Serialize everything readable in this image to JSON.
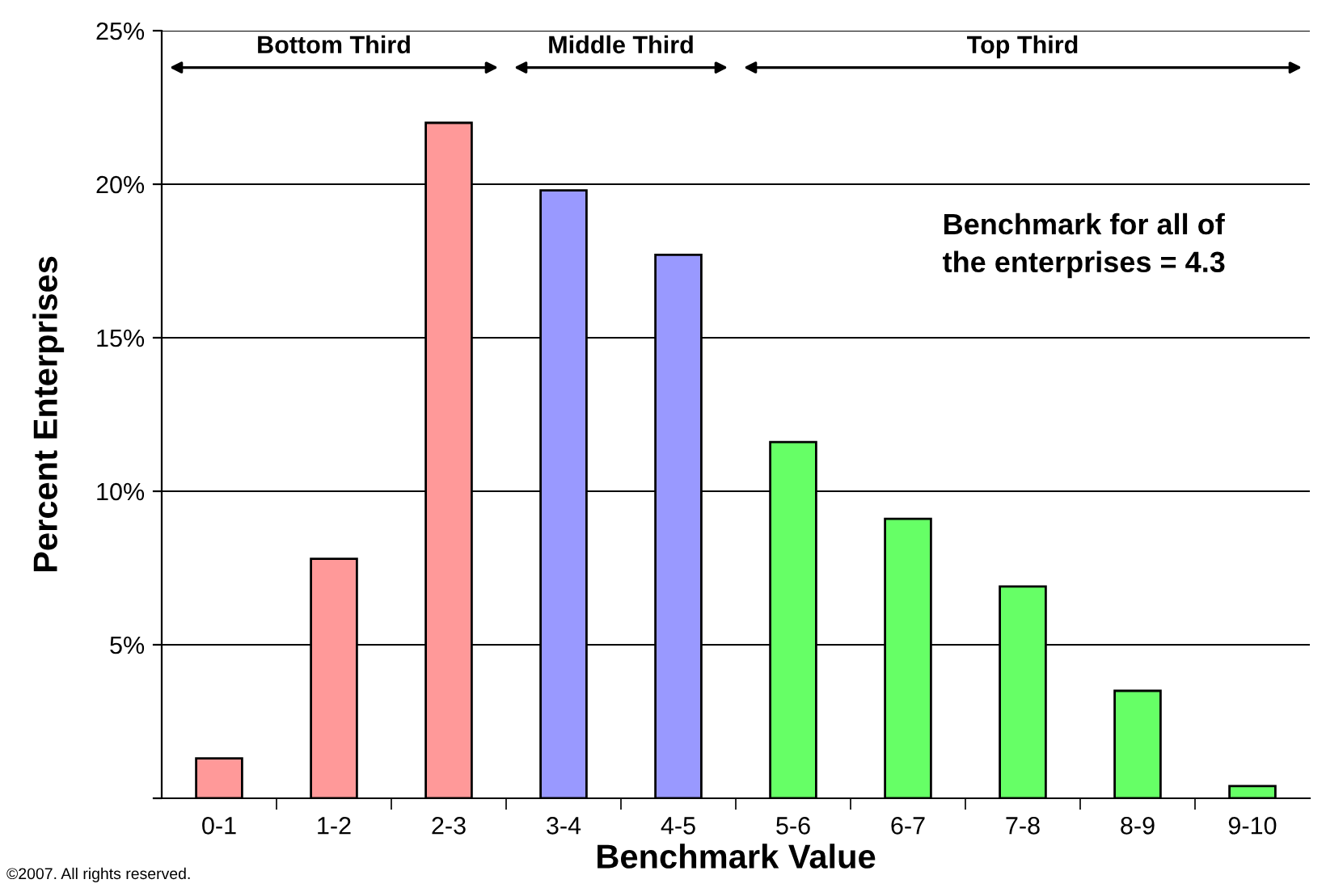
{
  "chart_data": {
    "type": "bar",
    "xlabel": "Benchmark Value",
    "ylabel": "Percent Enterprises",
    "categories": [
      "0-1",
      "1-2",
      "2-3",
      "3-4",
      "4-5",
      "5-6",
      "6-7",
      "7-8",
      "8-9",
      "9-10"
    ],
    "values": [
      1.3,
      7.8,
      22.0,
      19.8,
      17.7,
      11.6,
      9.1,
      6.9,
      3.5,
      0.4
    ],
    "colors": [
      "#ff9999",
      "#ff9999",
      "#ff9999",
      "#9999ff",
      "#9999ff",
      "#66ff66",
      "#66ff66",
      "#66ff66",
      "#66ff66",
      "#66ff66"
    ],
    "ylim": [
      0,
      25
    ],
    "yticks": [
      {
        "value": 0,
        "label": null
      },
      {
        "value": 5,
        "label": "5%"
      },
      {
        "value": 10,
        "label": "10%"
      },
      {
        "value": 15,
        "label": "15%"
      },
      {
        "value": 20,
        "label": "20%"
      },
      {
        "value": 25,
        "label": "25%"
      }
    ],
    "grid": "y",
    "annotations": [
      "Bottom Third",
      "Middle Third",
      "Top Third",
      "Benchmark for all of\nthe enterprises = 4.3",
      "©2007. All rights reserved."
    ]
  }
}
